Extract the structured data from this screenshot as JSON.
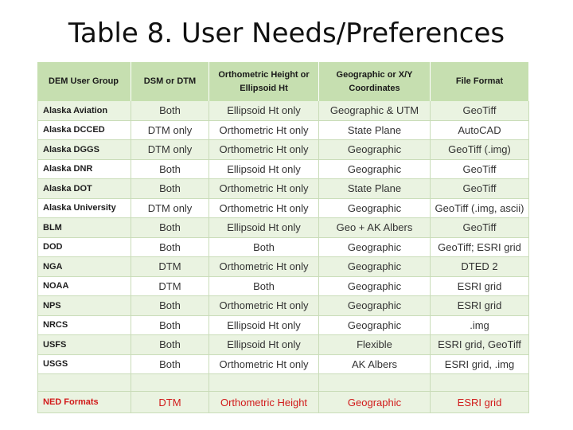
{
  "title": "Table 8.  User Needs/Preferences",
  "table": {
    "headers": [
      "DEM User Group",
      "DSM or DTM",
      "Orthometric Height or Ellipsoid Ht",
      "Geographic or X/Y Coordinates",
      "File Format"
    ],
    "rows": [
      [
        "Alaska Aviation",
        "Both",
        "Ellipsoid Ht only",
        "Geographic  & UTM",
        "GeoTiff"
      ],
      [
        "Alaska DCCED",
        "DTM only",
        "Orthometric Ht only",
        "State Plane",
        "AutoCAD"
      ],
      [
        "Alaska DGGS",
        "DTM only",
        "Orthometric Ht only",
        "Geographic",
        "GeoTiff (.img)"
      ],
      [
        "Alaska DNR",
        "Both",
        "Ellipsoid Ht only",
        "Geographic",
        "GeoTiff"
      ],
      [
        "Alaska DOT",
        "Both",
        "Orthometric Ht only",
        "State Plane",
        "GeoTiff"
      ],
      [
        "Alaska University",
        "DTM only",
        "Orthometric Ht only",
        "Geographic",
        "GeoTiff (.img, ascii)"
      ],
      [
        "BLM",
        "Both",
        "Ellipsoid Ht only",
        "Geo + AK Albers",
        "GeoTiff"
      ],
      [
        "DOD",
        "Both",
        "Both",
        "Geographic",
        "GeoTiff; ESRI grid"
      ],
      [
        "NGA",
        "DTM",
        "Orthometric Ht only",
        "Geographic",
        "DTED 2"
      ],
      [
        "NOAA",
        "DTM",
        "Both",
        "Geographic",
        "ESRI grid"
      ],
      [
        "NPS",
        "Both",
        "Orthometric Ht only",
        "Geographic",
        "ESRI grid"
      ],
      [
        "NRCS",
        "Both",
        "Ellipsoid Ht only",
        "Geographic",
        ".img"
      ],
      [
        "USFS",
        "Both",
        "Ellipsoid Ht only",
        "Flexible",
        "ESRI grid, GeoTiff"
      ],
      [
        "USGS",
        "Both",
        "Orthometric Ht only",
        "AK Albers",
        "ESRI grid, .img"
      ]
    ],
    "ned_row": [
      "NED Formats",
      "DTM",
      "Orthometric Height",
      "Geographic",
      "ESRI grid"
    ]
  }
}
